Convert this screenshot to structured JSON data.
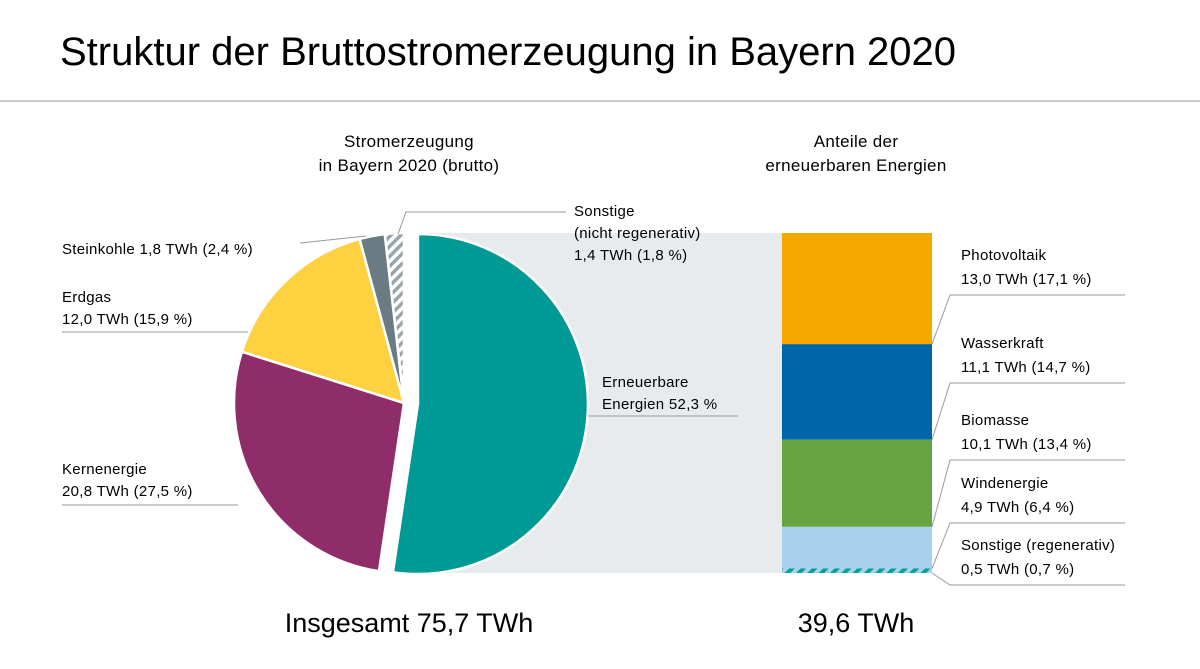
{
  "chart_data": [
    {
      "type": "pie",
      "title": "Struktur der Bruttostromerzeugung in Bayern 2020",
      "subtitle": [
        "Stromerzeugung",
        "in Bayern 2020 (brutto)"
      ],
      "unit": "TWh",
      "total_label": "Insgesamt 75,7 TWh",
      "slices": [
        {
          "name": "Erneuerbare Energien",
          "lines": [
            "Erneuerbare",
            "Energien  52,3 %"
          ],
          "percent": 52.3,
          "color": "#009a96",
          "exploded": true
        },
        {
          "name": "Kernenergie",
          "lines": [
            "Kernenergie",
            "20,8 TWh (27,5 %)"
          ],
          "value": 20.8,
          "percent": 27.5,
          "color": "#8e2d69"
        },
        {
          "name": "Erdgas",
          "lines": [
            "Erdgas",
            "12,0 TWh (15,9 %)"
          ],
          "value": 12.0,
          "percent": 15.9,
          "color": "#fdd13f"
        },
        {
          "name": "Steinkohle",
          "lines": [
            "Steinkohle   1,8 TWh (2,4 %)"
          ],
          "value": 1.8,
          "percent": 2.4,
          "color": "#6b7b84"
        },
        {
          "name": "Sonstige (nicht regenerativ)",
          "lines": [
            "Sonstige",
            "(nicht regenerativ)",
            "1,4 TWh (1,8 %)"
          ],
          "value": 1.4,
          "percent": 1.8,
          "color": "#9aa5ab",
          "pattern": "hatched"
        }
      ]
    },
    {
      "type": "bar",
      "stacked": true,
      "title": "Anteile der erneuerbaren Energien",
      "subtitle": [
        "Anteile der",
        "erneuerbaren Energien"
      ],
      "unit": "TWh",
      "total_label": "39,6 TWh",
      "total": 39.6,
      "segments": [
        {
          "name": "Photovoltaik",
          "lines": [
            "Photovoltaik",
            "13,0 TWh (17,1 %)"
          ],
          "value": 13.0,
          "percent": 17.1,
          "color": "#f5a800"
        },
        {
          "name": "Wasserkraft",
          "lines": [
            "Wasserkraft",
            "11,1 TWh (14,7 %)"
          ],
          "value": 11.1,
          "percent": 14.7,
          "color": "#0065a9"
        },
        {
          "name": "Biomasse",
          "lines": [
            "Biomasse",
            "10,1 TWh (13,4 %)"
          ],
          "value": 10.1,
          "percent": 13.4,
          "color": "#66a540"
        },
        {
          "name": "Windenergie",
          "lines": [
            "Windenergie",
            "4,9 TWh (6,4 %)"
          ],
          "value": 4.9,
          "percent": 6.4,
          "color": "#a8d1ee"
        },
        {
          "name": "Sonstige (regenerativ)",
          "lines": [
            "Sonstige (regenerativ)",
            "0,5 TWh (0,7 %)"
          ],
          "value": 0.5,
          "percent": 0.7,
          "color": "#00a29a",
          "pattern": "hatched"
        }
      ]
    }
  ]
}
